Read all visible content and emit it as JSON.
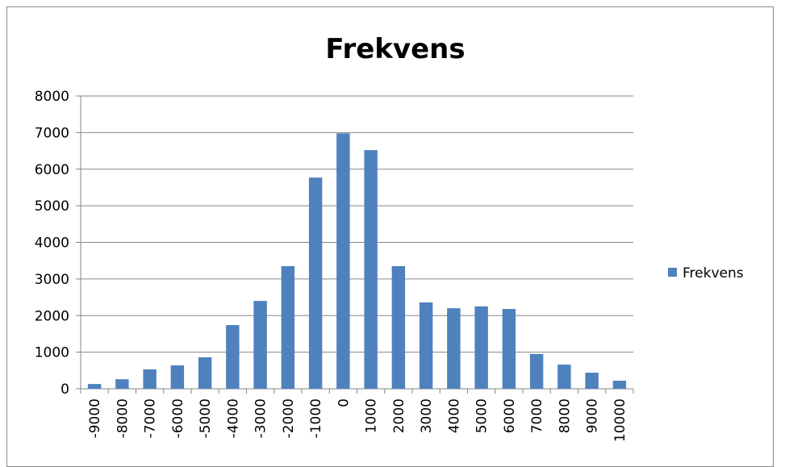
{
  "chart_data": {
    "type": "bar",
    "title": "Frekvens",
    "categories": [
      "-9000",
      "-8000",
      "-7000",
      "-6000",
      "-5000",
      "-4000",
      "-3000",
      "-2000",
      "-1000",
      "0",
      "1000",
      "2000",
      "3000",
      "4000",
      "5000",
      "6000",
      "7000",
      "8000",
      "9000",
      "10000"
    ],
    "series": [
      {
        "name": "Frekvens",
        "color": "#4f81bd",
        "values": [
          130,
          260,
          530,
          640,
          860,
          1740,
          2400,
          3350,
          5770,
          6980,
          6520,
          3350,
          2360,
          2200,
          2250,
          2180,
          950,
          660,
          440,
          220
        ]
      }
    ],
    "ylim": [
      0,
      8000
    ],
    "yticks": [
      0,
      1000,
      2000,
      3000,
      4000,
      5000,
      6000,
      7000,
      8000
    ],
    "grid": true,
    "legend": "right"
  }
}
